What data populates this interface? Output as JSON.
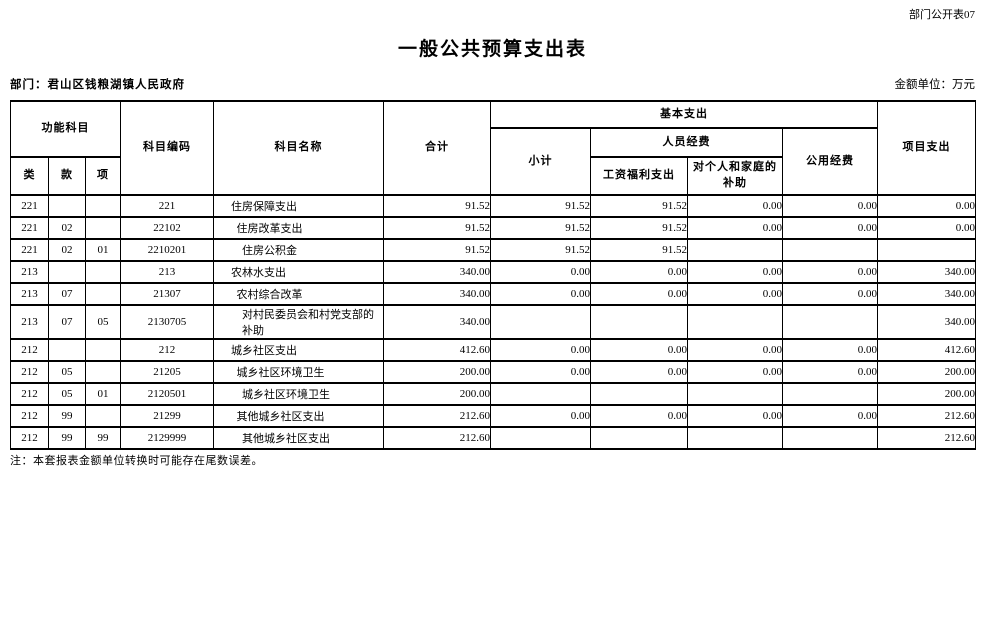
{
  "page": {
    "doc_code": "部门公开表07",
    "title": "一般公共预算支出表",
    "department_label": "部门：君山区钱粮湖镇人民政府",
    "unit_label": "金额单位：万元",
    "note": "注：本套报表金额单位转换时可能存在尾数误差。"
  },
  "table": {
    "headers": {
      "func_subject": "功能科目",
      "lei": "类",
      "kuan": "款",
      "xiang": "项",
      "subject_code": "科目编码",
      "subject_name": "科目名称",
      "total": "合计",
      "basic_expenditure": "基本支出",
      "subtotal": "小计",
      "personnel_funds": "人员经费",
      "salary_welfare": "工资福利支出",
      "individual_family_subsidy": "对个人和家庭的补助",
      "public_funds": "公用经费",
      "project_expenditure": "项目支出"
    },
    "rows": [
      {
        "lei": "221",
        "kuan": "",
        "xiang": "",
        "code": "221",
        "name": "住房保障支出",
        "level": 1,
        "total": "91.52",
        "subtotal": "91.52",
        "salary": "91.52",
        "family": "0.00",
        "public": "0.00",
        "project": "0.00"
      },
      {
        "lei": "221",
        "kuan": "02",
        "xiang": "",
        "code": "22102",
        "name": "住房改革支出",
        "level": 2,
        "total": "91.52",
        "subtotal": "91.52",
        "salary": "91.52",
        "family": "0.00",
        "public": "0.00",
        "project": "0.00"
      },
      {
        "lei": "221",
        "kuan": "02",
        "xiang": "01",
        "code": "2210201",
        "name": "住房公积金",
        "level": 3,
        "total": "91.52",
        "subtotal": "91.52",
        "salary": "91.52",
        "family": "",
        "public": "",
        "project": ""
      },
      {
        "lei": "213",
        "kuan": "",
        "xiang": "",
        "code": "213",
        "name": "农林水支出",
        "level": 1,
        "total": "340.00",
        "subtotal": "0.00",
        "salary": "0.00",
        "family": "0.00",
        "public": "0.00",
        "project": "340.00"
      },
      {
        "lei": "213",
        "kuan": "07",
        "xiang": "",
        "code": "21307",
        "name": "农村综合改革",
        "level": 2,
        "total": "340.00",
        "subtotal": "0.00",
        "salary": "0.00",
        "family": "0.00",
        "public": "0.00",
        "project": "340.00"
      },
      {
        "lei": "213",
        "kuan": "07",
        "xiang": "05",
        "code": "2130705",
        "name": "对村民委员会和村党支部的补助",
        "level": 3,
        "total": "340.00",
        "subtotal": "",
        "salary": "",
        "family": "",
        "public": "",
        "project": "340.00"
      },
      {
        "lei": "212",
        "kuan": "",
        "xiang": "",
        "code": "212",
        "name": "城乡社区支出",
        "level": 1,
        "total": "412.60",
        "subtotal": "0.00",
        "salary": "0.00",
        "family": "0.00",
        "public": "0.00",
        "project": "412.60"
      },
      {
        "lei": "212",
        "kuan": "05",
        "xiang": "",
        "code": "21205",
        "name": "城乡社区环境卫生",
        "level": 2,
        "total": "200.00",
        "subtotal": "0.00",
        "salary": "0.00",
        "family": "0.00",
        "public": "0.00",
        "project": "200.00"
      },
      {
        "lei": "212",
        "kuan": "05",
        "xiang": "01",
        "code": "2120501",
        "name": "城乡社区环境卫生",
        "level": 3,
        "total": "200.00",
        "subtotal": "",
        "salary": "",
        "family": "",
        "public": "",
        "project": "200.00"
      },
      {
        "lei": "212",
        "kuan": "99",
        "xiang": "",
        "code": "21299",
        "name": "其他城乡社区支出",
        "level": 2,
        "total": "212.60",
        "subtotal": "0.00",
        "salary": "0.00",
        "family": "0.00",
        "public": "0.00",
        "project": "212.60"
      },
      {
        "lei": "212",
        "kuan": "99",
        "xiang": "99",
        "code": "2129999",
        "name": "其他城乡社区支出",
        "level": 3,
        "total": "212.60",
        "subtotal": "",
        "salary": "",
        "family": "",
        "public": "",
        "project": "212.60"
      }
    ]
  }
}
